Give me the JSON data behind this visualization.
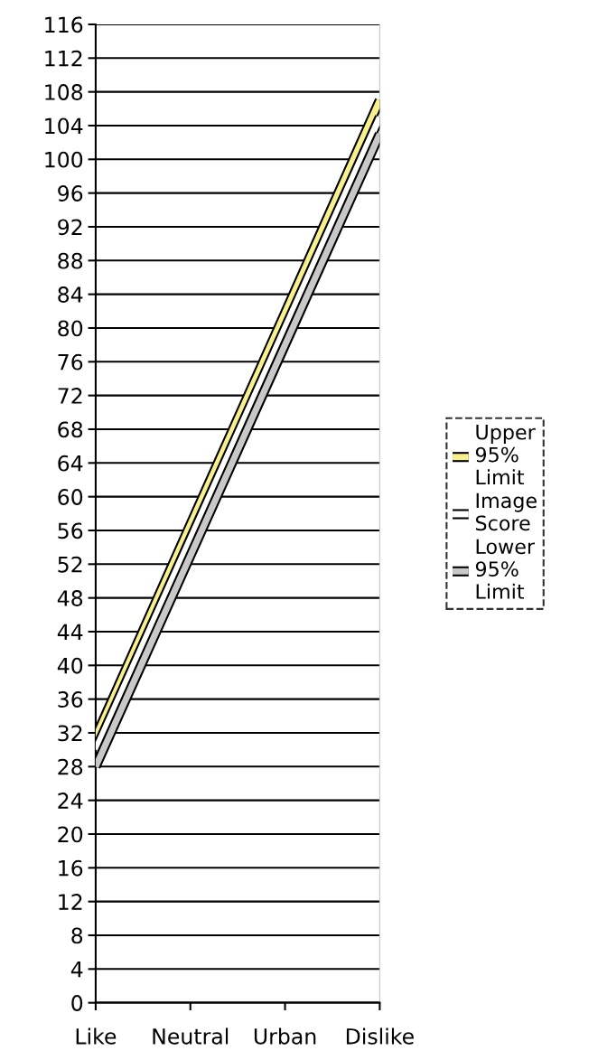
{
  "chart_data": {
    "type": "line",
    "categories": [
      "Like",
      "Neutral",
      "Urban",
      "Dislike"
    ],
    "series": [
      {
        "name": "Upper 95% Limit",
        "color": "#f7f08c",
        "values": [
          31.5,
          56.7,
          81.8,
          107
        ]
      },
      {
        "name": "Image Score",
        "color": "#ffffff",
        "values": [
          30,
          55,
          80,
          105
        ]
      },
      {
        "name": "Lower 95% Limit",
        "color": "#c8c8c8",
        "values": [
          28,
          53,
          78,
          103
        ]
      }
    ],
    "ylim": [
      0,
      116
    ],
    "yticks": [
      0,
      4,
      8,
      12,
      16,
      20,
      24,
      28,
      32,
      36,
      40,
      44,
      48,
      52,
      56,
      60,
      64,
      68,
      72,
      76,
      80,
      84,
      88,
      92,
      96,
      100,
      104,
      108,
      112,
      116
    ],
    "grid": "y",
    "legend": "right",
    "marker": "none",
    "line_style": "solid"
  }
}
